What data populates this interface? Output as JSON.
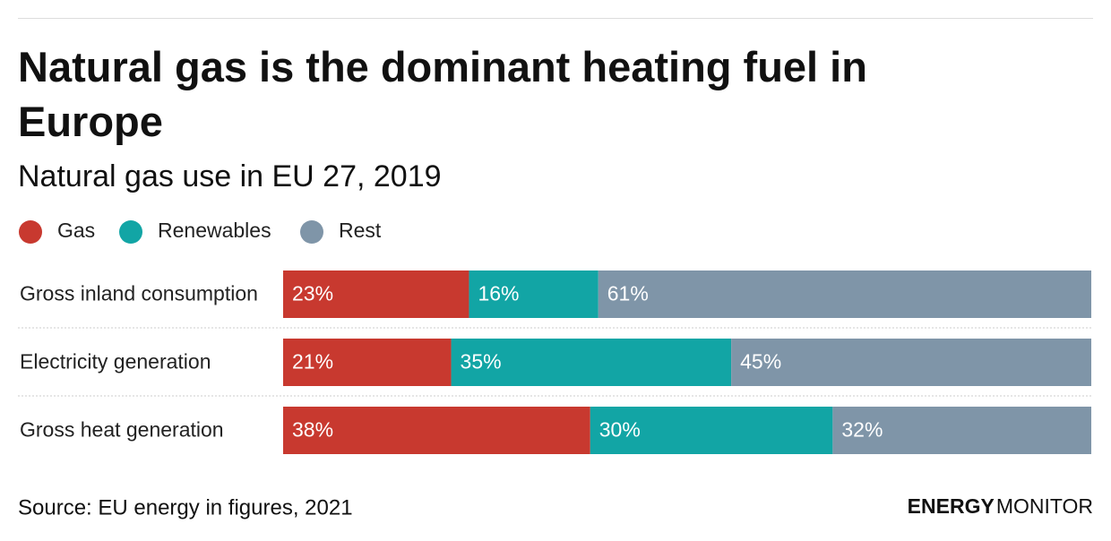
{
  "chart_data": {
    "type": "stacked-bar-horizontal",
    "title": "Natural gas is the dominant heating fuel in Europe",
    "subtitle": "Natural gas use in EU 27, 2019",
    "categories": [
      "Gross inland consumption",
      "Electricity generation",
      "Gross heat generation"
    ],
    "series": [
      {
        "name": "Gas",
        "color": "#c8392f",
        "values": [
          23,
          21,
          38
        ],
        "value_labels": [
          "23%",
          "21%",
          "38%"
        ]
      },
      {
        "name": "Renewables",
        "color": "#12a5a5",
        "values": [
          16,
          35,
          30
        ],
        "value_labels": [
          "16%",
          "35%",
          "30%"
        ]
      },
      {
        "name": "Rest",
        "color": "#7f95a8",
        "values": [
          61,
          45,
          32
        ],
        "value_labels": [
          "61%",
          "45%",
          "32%"
        ]
      }
    ],
    "source": "Source: EU energy in figures, 2021",
    "logo": {
      "bold": "ENERGY",
      "light": "MONITOR"
    }
  }
}
